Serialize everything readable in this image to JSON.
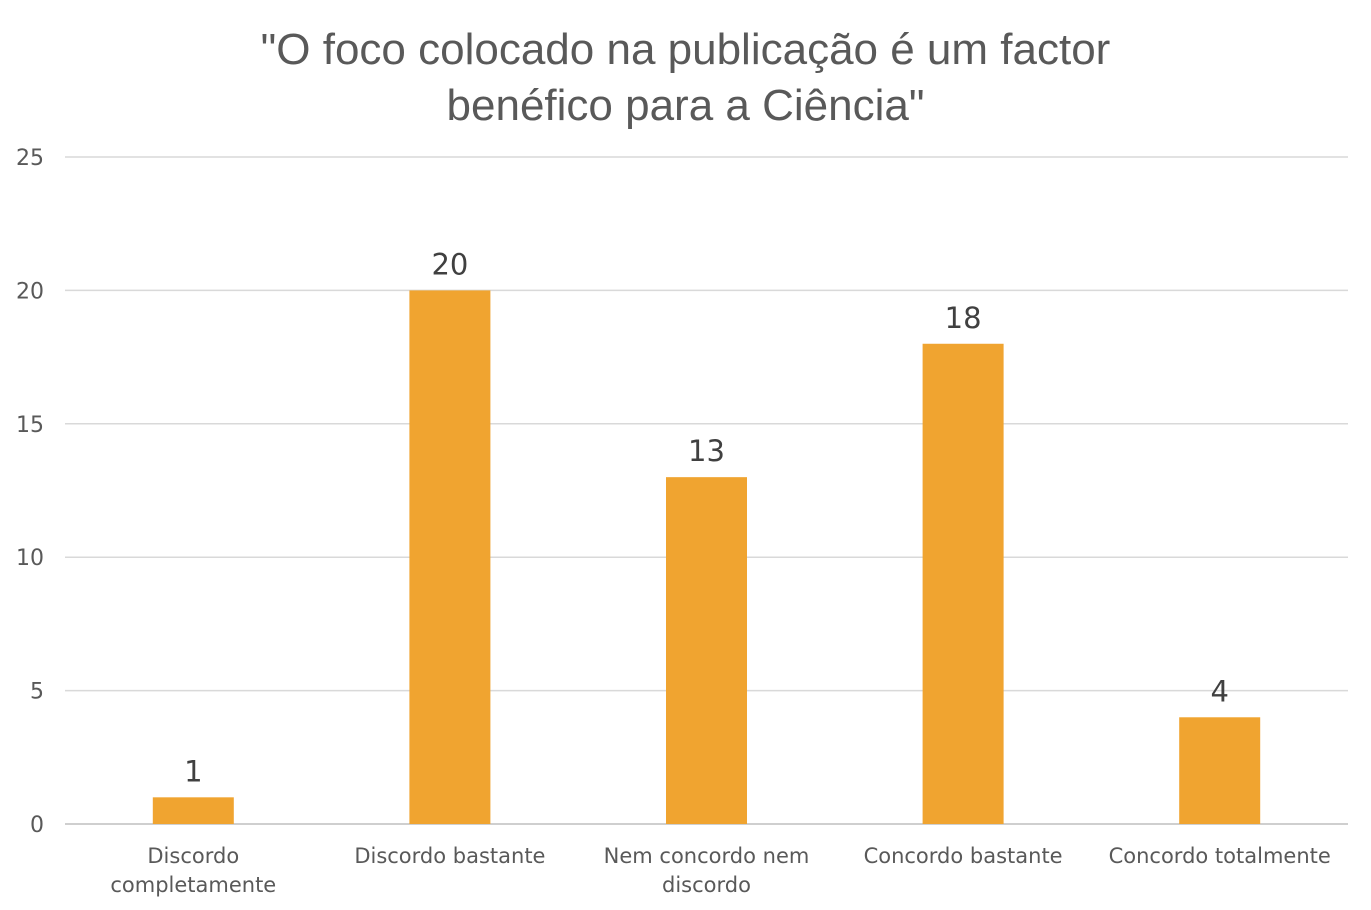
{
  "chart_data": {
    "type": "bar",
    "title": "\"O foco colocado na publicação é um factor benéfico para a Ciência\"",
    "categories": [
      "Discordo completamente",
      "Discordo bastante",
      "Nem concordo nem discordo",
      "Concordo bastante",
      "Concordo totalmente"
    ],
    "values": [
      1,
      20,
      13,
      18,
      4
    ],
    "xlabel": "",
    "ylabel": "",
    "ylim": [
      0,
      25
    ],
    "yticks": [
      0,
      5,
      10,
      15,
      20,
      25
    ],
    "grid": true,
    "legend": "none",
    "bar_color": "#f0a430",
    "data_labels": true
  }
}
